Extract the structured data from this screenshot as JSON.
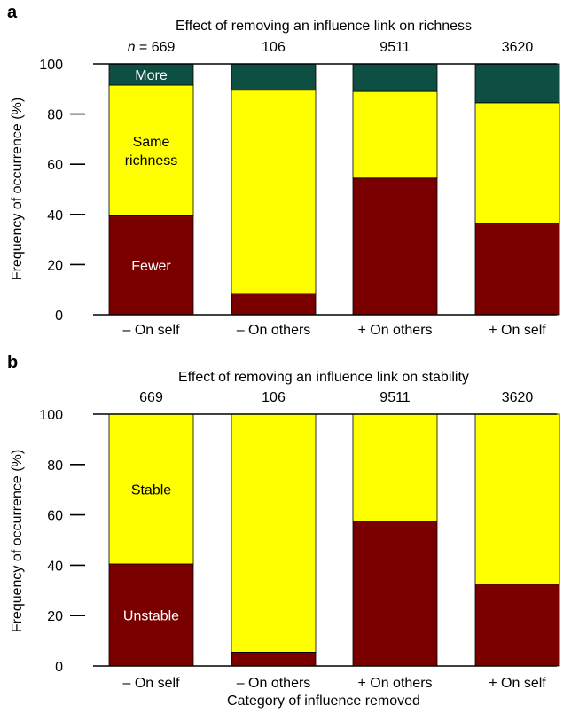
{
  "colors": {
    "more": "#0d4f43",
    "same": "#ffff00",
    "fewer": "#7a0000",
    "stable": "#ffff00",
    "unstable": "#7a0000",
    "axis": "#000000"
  },
  "shared": {
    "ylabel": "Frequency of occurrence (%)",
    "xlabel": "Category of influence removed",
    "categories": [
      "– On self",
      "– On others",
      "+ On others",
      "+ On self"
    ]
  },
  "chart_data": [
    {
      "panel": "a",
      "type": "bar",
      "stacked": true,
      "title": "Effect of removing an influence link on richness",
      "n_prefix": "n",
      "n_values": [
        "669",
        "106",
        "9511",
        "3620"
      ],
      "categories": [
        "– On self",
        "– On others",
        "+ On others",
        "+ On self"
      ],
      "ylabel": "Frequency of occurrence (%)",
      "ylim": [
        0,
        100
      ],
      "yticks": [
        0,
        20,
        40,
        60,
        80,
        100
      ],
      "series": [
        {
          "name": "Fewer",
          "label_lines": [
            "Fewer"
          ],
          "values": [
            39.5,
            8.5,
            54.5,
            36.5
          ],
          "color_key": "fewer",
          "label_color": "#ffffff"
        },
        {
          "name": "Same richness",
          "label_lines": [
            "Same",
            "richness"
          ],
          "values": [
            52,
            81,
            34.5,
            48
          ],
          "color_key": "same",
          "label_color": "#000000"
        },
        {
          "name": "More",
          "label_lines": [
            "More"
          ],
          "values": [
            8.5,
            10.5,
            11,
            15.5
          ],
          "color_key": "more",
          "label_color": "#ffffff"
        }
      ]
    },
    {
      "panel": "b",
      "type": "bar",
      "stacked": true,
      "title": "Effect of removing an influence link on stability",
      "n_prefix": "",
      "n_values": [
        "669",
        "106",
        "9511",
        "3620"
      ],
      "categories": [
        "– On self",
        "– On others",
        "+ On others",
        "+ On self"
      ],
      "ylabel": "Frequency of occurrence (%)",
      "xlabel": "Category of influence removed",
      "ylim": [
        0,
        100
      ],
      "yticks": [
        0,
        20,
        40,
        60,
        80,
        100
      ],
      "series": [
        {
          "name": "Unstable",
          "label_lines": [
            "Unstable"
          ],
          "values": [
            40.5,
            5.5,
            57.5,
            32.5
          ],
          "color_key": "unstable",
          "label_color": "#ffffff"
        },
        {
          "name": "Stable",
          "label_lines": [
            "Stable"
          ],
          "values": [
            59.5,
            94.5,
            42.5,
            67.5
          ],
          "color_key": "stable",
          "label_color": "#000000"
        }
      ]
    }
  ]
}
